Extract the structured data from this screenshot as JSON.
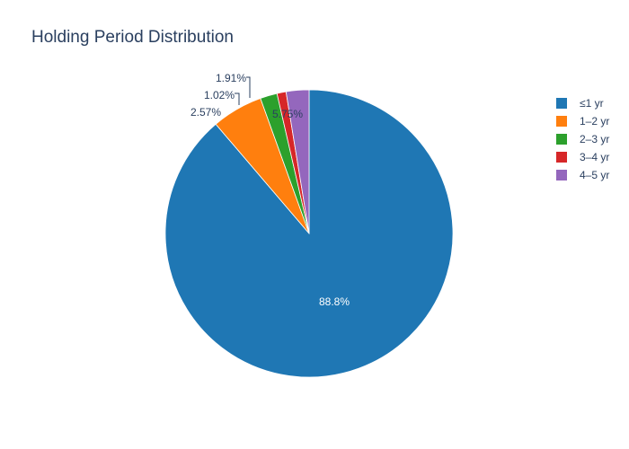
{
  "chart_data": {
    "type": "pie",
    "title": "Holding Period Distribution",
    "direction": "clockwise",
    "slices": [
      {
        "label": "≤1 yr",
        "value": 88.8,
        "text": "88.8%",
        "color": "#1f77b4",
        "text_color": "#ffffff"
      },
      {
        "label": "1–2 yr",
        "value": 5.75,
        "text": "5.75%",
        "color": "#ff7f0e",
        "text_color": "#2a3f5f"
      },
      {
        "label": "2–3 yr",
        "value": 1.91,
        "text": "1.91%",
        "color": "#2ca02c",
        "text_color": "#2a3f5f"
      },
      {
        "label": "3–4 yr",
        "value": 1.02,
        "text": "1.02%",
        "color": "#d62728",
        "text_color": "#2a3f5f"
      },
      {
        "label": "4–5 yr",
        "value": 2.57,
        "text": "2.57%",
        "color": "#9467bd",
        "text_color": "#2a3f5f"
      }
    ],
    "legend": {
      "placement": "right"
    }
  }
}
